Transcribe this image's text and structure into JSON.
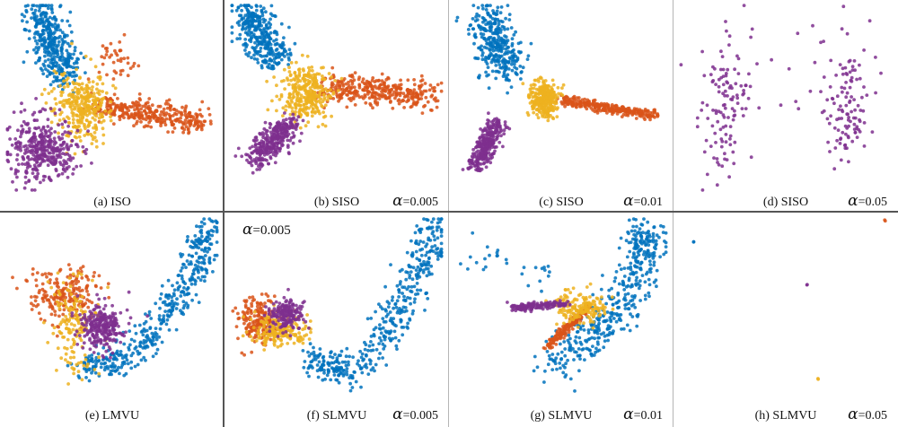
{
  "figure": {
    "series": [
      {
        "color": "#0072BD"
      },
      {
        "color": "#D95319"
      },
      {
        "color": "#EDB120"
      },
      {
        "color": "#7E2F8E"
      }
    ],
    "panels": [
      {
        "caption": "(a) ISO",
        "alpha_symbol": "",
        "alpha_value": ""
      },
      {
        "caption": "(b) SISO",
        "alpha_symbol": "α",
        "alpha_value": "=0.005"
      },
      {
        "caption": "(c) SISO",
        "alpha_symbol": "α",
        "alpha_value": "=0.01"
      },
      {
        "caption": "(d) SISO",
        "alpha_symbol": "α",
        "alpha_value": "=0.05"
      },
      {
        "caption": "(e) LMVU",
        "alpha_symbol": "",
        "alpha_value": ""
      },
      {
        "caption": "(f) SLMVU",
        "alpha_symbol": "α",
        "alpha_value": "=0.005",
        "top_alpha_symbol": "α",
        "top_alpha_value": "=0.005"
      },
      {
        "caption": "(g) SLMVU",
        "alpha_symbol": "α",
        "alpha_value": "=0.01"
      },
      {
        "caption": "(h) SLMVU",
        "alpha_symbol": "α",
        "alpha_value": "=0.05"
      }
    ]
  },
  "chart_data": [
    {
      "type": "scatter",
      "panel": "a",
      "grid": false,
      "clusters": [
        {
          "series": 0,
          "shape": "line",
          "from": [
            0.16,
            0.04
          ],
          "to": [
            0.28,
            0.38
          ],
          "spread": 0.045,
          "count": 380
        },
        {
          "series": 1,
          "shape": "line",
          "from": [
            0.42,
            0.54
          ],
          "to": [
            0.9,
            0.63
          ],
          "spread": 0.035,
          "count": 330
        },
        {
          "series": 1,
          "shape": "blob",
          "center": [
            0.52,
            0.3
          ],
          "spread": [
            0.05,
            0.06
          ],
          "count": 40
        },
        {
          "series": 2,
          "shape": "blob",
          "center": [
            0.36,
            0.55
          ],
          "spread": [
            0.06,
            0.09
          ],
          "count": 330
        },
        {
          "series": 3,
          "shape": "blob",
          "center": [
            0.17,
            0.77
          ],
          "spread": [
            0.08,
            0.08
          ],
          "count": 380
        }
      ]
    },
    {
      "type": "scatter",
      "panel": "b",
      "grid": false,
      "clusters": [
        {
          "series": 0,
          "shape": "line",
          "from": [
            0.08,
            0.04
          ],
          "to": [
            0.22,
            0.32
          ],
          "spread": 0.045,
          "count": 330
        },
        {
          "series": 1,
          "shape": "line",
          "from": [
            0.44,
            0.44
          ],
          "to": [
            0.94,
            0.49
          ],
          "spread": 0.04,
          "count": 350
        },
        {
          "series": 2,
          "shape": "blob",
          "center": [
            0.36,
            0.48
          ],
          "spread": [
            0.06,
            0.07
          ],
          "count": 330
        },
        {
          "series": 3,
          "shape": "line",
          "from": [
            0.28,
            0.64
          ],
          "to": [
            0.12,
            0.82
          ],
          "spread": 0.035,
          "count": 320
        }
      ]
    },
    {
      "type": "scatter",
      "panel": "c",
      "grid": false,
      "clusters": [
        {
          "series": 0,
          "shape": "line",
          "from": [
            0.14,
            0.06
          ],
          "to": [
            0.24,
            0.36
          ],
          "spread": 0.05,
          "count": 320
        },
        {
          "series": 1,
          "shape": "line",
          "from": [
            0.5,
            0.51
          ],
          "to": [
            0.95,
            0.6
          ],
          "spread": 0.013,
          "count": 280
        },
        {
          "series": 2,
          "shape": "blob",
          "center": [
            0.42,
            0.5
          ],
          "spread": [
            0.03,
            0.05
          ],
          "count": 300
        },
        {
          "series": 3,
          "shape": "line",
          "from": [
            0.2,
            0.63
          ],
          "to": [
            0.1,
            0.87
          ],
          "spread": 0.025,
          "count": 300
        }
      ]
    },
    {
      "type": "scatter",
      "panel": "d",
      "grid": false,
      "clusters": [
        {
          "series": 3,
          "shape": "blob",
          "center": [
            0.21,
            0.55
          ],
          "spread": [
            0.05,
            0.18
          ],
          "count": 110
        },
        {
          "series": 3,
          "shape": "blob",
          "center": [
            0.78,
            0.55
          ],
          "spread": [
            0.05,
            0.18
          ],
          "count": 110
        },
        {
          "series": 3,
          "shape": "blob",
          "center": [
            0.5,
            0.35
          ],
          "spread": [
            0.24,
            0.22
          ],
          "count": 25
        }
      ]
    },
    {
      "type": "scatter",
      "panel": "e",
      "grid": false,
      "clusters": [
        {
          "series": 0,
          "shape": "curve",
          "points": [
            [
              0.36,
              0.8
            ],
            [
              0.56,
              0.76
            ],
            [
              0.75,
              0.52
            ],
            [
              0.9,
              0.25
            ],
            [
              0.96,
              0.04
            ]
          ],
          "spread": 0.04,
          "count": 420
        },
        {
          "series": 1,
          "shape": "blob",
          "center": [
            0.28,
            0.4
          ],
          "spread": [
            0.09,
            0.07
          ],
          "count": 200
        },
        {
          "series": 2,
          "shape": "blob",
          "center": [
            0.32,
            0.58
          ],
          "spread": [
            0.05,
            0.12
          ],
          "count": 160
        },
        {
          "series": 3,
          "shape": "blob",
          "center": [
            0.45,
            0.58
          ],
          "spread": [
            0.05,
            0.06
          ],
          "count": 260
        }
      ]
    },
    {
      "type": "scatter",
      "panel": "f",
      "grid": false,
      "clusters": [
        {
          "series": 0,
          "shape": "curve",
          "points": [
            [
              0.38,
              0.76
            ],
            [
              0.57,
              0.82
            ],
            [
              0.78,
              0.52
            ],
            [
              0.9,
              0.25
            ],
            [
              0.96,
              0.04
            ]
          ],
          "spread": 0.045,
          "count": 420
        },
        {
          "series": 1,
          "shape": "blob",
          "center": [
            0.13,
            0.55
          ],
          "spread": [
            0.05,
            0.06
          ],
          "count": 200
        },
        {
          "series": 2,
          "shape": "blob",
          "center": [
            0.23,
            0.6
          ],
          "spread": [
            0.07,
            0.04
          ],
          "count": 200
        },
        {
          "series": 3,
          "shape": "blob",
          "center": [
            0.27,
            0.52
          ],
          "spread": [
            0.04,
            0.04
          ],
          "count": 180
        }
      ]
    },
    {
      "type": "scatter",
      "panel": "g",
      "grid": false,
      "clusters": [
        {
          "series": 0,
          "shape": "curve",
          "points": [
            [
              0.47,
              0.78
            ],
            [
              0.64,
              0.62
            ],
            [
              0.8,
              0.45
            ],
            [
              0.88,
              0.2
            ],
            [
              0.88,
              0.08
            ]
          ],
          "spread": 0.05,
          "count": 420
        },
        {
          "series": 0,
          "shape": "line",
          "from": [
            0.05,
            0.2
          ],
          "to": [
            0.47,
            0.3
          ],
          "spread": 0.04,
          "count": 28
        },
        {
          "series": 1,
          "shape": "line",
          "from": [
            0.43,
            0.69
          ],
          "to": [
            0.63,
            0.48
          ],
          "spread": 0.01,
          "count": 150
        },
        {
          "series": 2,
          "shape": "blob",
          "center": [
            0.6,
            0.48
          ],
          "spread": [
            0.06,
            0.04
          ],
          "count": 170
        },
        {
          "series": 3,
          "shape": "line",
          "from": [
            0.27,
            0.48
          ],
          "to": [
            0.53,
            0.46
          ],
          "spread": 0.01,
          "count": 150
        }
      ]
    },
    {
      "type": "scatter",
      "panel": "h",
      "grid": false,
      "clusters": [
        {
          "series": 0,
          "shape": "blob",
          "center": [
            0.07,
            0.13
          ],
          "spread": [
            0.003,
            0.003
          ],
          "count": 2
        },
        {
          "series": 1,
          "shape": "blob",
          "center": [
            0.97,
            0.02
          ],
          "spread": [
            0.003,
            0.003
          ],
          "count": 2
        },
        {
          "series": 3,
          "shape": "blob",
          "center": [
            0.6,
            0.36
          ],
          "spread": [
            0.003,
            0.003
          ],
          "count": 2
        },
        {
          "series": 2,
          "shape": "blob",
          "center": [
            0.65,
            0.86
          ],
          "spread": [
            0.003,
            0.003
          ],
          "count": 2
        }
      ]
    }
  ]
}
